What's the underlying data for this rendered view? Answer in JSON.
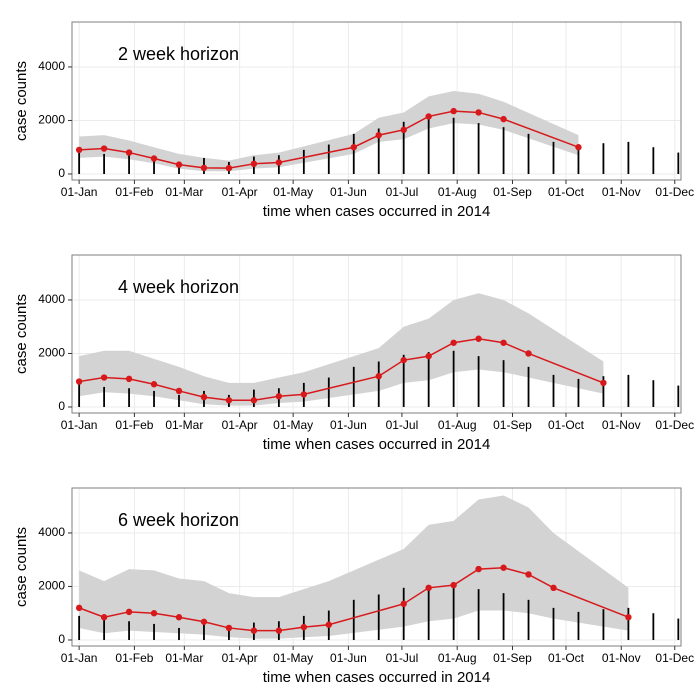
{
  "chart_data": [
    {
      "type": "line",
      "annotation": "2 week horizon",
      "xlabel": "time when cases occurred in 2014",
      "ylabel": "case counts",
      "xlim": [
        -4,
        337.5
      ],
      "ylim": [
        -225,
        5680
      ],
      "grid": true,
      "xticks": [
        {
          "value": 0,
          "label": "01-Jan"
        },
        {
          "value": 31,
          "label": "01-Feb"
        },
        {
          "value": 59,
          "label": "01-Mar"
        },
        {
          "value": 90,
          "label": "01-Apr"
        },
        {
          "value": 120,
          "label": "01-May"
        },
        {
          "value": 151,
          "label": "01-Jun"
        },
        {
          "value": 181,
          "label": "01-Jul"
        },
        {
          "value": 212,
          "label": "01-Aug"
        },
        {
          "value": 243,
          "label": "01-Sep"
        },
        {
          "value": 273,
          "label": "01-Oct"
        },
        {
          "value": 304,
          "label": "01-Nov"
        },
        {
          "value": 334,
          "label": "01-Dec"
        }
      ],
      "yticks": [
        0,
        2000,
        4000
      ],
      "bars": {
        "color": "#000000",
        "x": [
          0,
          14,
          28,
          42,
          56,
          70,
          84,
          98,
          112,
          126,
          140,
          154,
          168,
          182,
          196,
          210,
          224,
          238,
          252,
          266,
          280,
          294,
          308,
          322,
          336
        ],
        "values": [
          900,
          750,
          700,
          600,
          450,
          600,
          450,
          650,
          700,
          900,
          1100,
          1500,
          1700,
          1950,
          2050,
          2100,
          1900,
          1750,
          1500,
          1200,
          1050,
          1150,
          1200,
          1000,
          800
        ]
      },
      "line": {
        "color": "#d7191c",
        "band_color": "#d3d3d3",
        "x": [
          0,
          14,
          28,
          42,
          56,
          70,
          84,
          98,
          112,
          154,
          168,
          182,
          196,
          210,
          224,
          238,
          280
        ],
        "values": [
          900,
          950,
          800,
          580,
          350,
          230,
          220,
          380,
          430,
          1000,
          1450,
          1650,
          2150,
          2350,
          2300,
          2050,
          1000
        ],
        "lower": [
          600,
          650,
          550,
          400,
          200,
          100,
          100,
          200,
          250,
          750,
          1200,
          1300,
          1700,
          1900,
          1850,
          1650,
          700
        ],
        "upper": [
          1400,
          1450,
          1250,
          1000,
          750,
          600,
          500,
          700,
          800,
          1500,
          2100,
          2300,
          2900,
          3100,
          3000,
          2700,
          1450
        ]
      }
    },
    {
      "type": "line",
      "annotation": "4 week horizon",
      "xlabel": "time when cases occurred in 2014",
      "ylabel": "case counts",
      "xlim": [
        -4,
        337.5
      ],
      "ylim": [
        -225,
        5680
      ],
      "grid": true,
      "xticks": [
        {
          "value": 0,
          "label": "01-Jan"
        },
        {
          "value": 31,
          "label": "01-Feb"
        },
        {
          "value": 59,
          "label": "01-Mar"
        },
        {
          "value": 90,
          "label": "01-Apr"
        },
        {
          "value": 120,
          "label": "01-May"
        },
        {
          "value": 151,
          "label": "01-Jun"
        },
        {
          "value": 181,
          "label": "01-Jul"
        },
        {
          "value": 212,
          "label": "01-Aug"
        },
        {
          "value": 243,
          "label": "01-Sep"
        },
        {
          "value": 273,
          "label": "01-Oct"
        },
        {
          "value": 304,
          "label": "01-Nov"
        },
        {
          "value": 334,
          "label": "01-Dec"
        }
      ],
      "yticks": [
        0,
        2000,
        4000
      ],
      "bars": {
        "color": "#000000",
        "x": [
          0,
          14,
          28,
          42,
          56,
          70,
          84,
          98,
          112,
          126,
          140,
          154,
          168,
          182,
          196,
          210,
          224,
          238,
          252,
          266,
          280,
          294,
          308,
          322,
          336
        ],
        "values": [
          900,
          750,
          700,
          600,
          450,
          600,
          450,
          650,
          700,
          900,
          1100,
          1500,
          1700,
          1950,
          2050,
          2100,
          1900,
          1750,
          1500,
          1200,
          1050,
          1150,
          1200,
          1000,
          800
        ]
      },
      "line": {
        "color": "#d7191c",
        "band_color": "#d3d3d3",
        "x": [
          0,
          14,
          28,
          42,
          56,
          70,
          84,
          98,
          112,
          126,
          168,
          182,
          196,
          210,
          224,
          238,
          252,
          294
        ],
        "values": [
          950,
          1100,
          1050,
          850,
          600,
          370,
          250,
          250,
          400,
          470,
          1150,
          1750,
          1900,
          2400,
          2550,
          2400,
          2000,
          900
        ],
        "lower": [
          400,
          550,
          500,
          400,
          250,
          100,
          50,
          50,
          150,
          200,
          600,
          900,
          1000,
          1300,
          1400,
          1300,
          1100,
          500
        ],
        "upper": [
          1900,
          2100,
          2100,
          1800,
          1500,
          1150,
          900,
          900,
          1100,
          1300,
          2200,
          3000,
          3300,
          4000,
          4250,
          4000,
          3500,
          1700
        ]
      }
    },
    {
      "type": "line",
      "annotation": "6 week horizon",
      "xlabel": "time when cases occurred in 2014",
      "ylabel": "case counts",
      "xlim": [
        -4,
        337.5
      ],
      "ylim": [
        -225,
        5680
      ],
      "grid": true,
      "xticks": [
        {
          "value": 0,
          "label": "01-Jan"
        },
        {
          "value": 31,
          "label": "01-Feb"
        },
        {
          "value": 59,
          "label": "01-Mar"
        },
        {
          "value": 90,
          "label": "01-Apr"
        },
        {
          "value": 120,
          "label": "01-May"
        },
        {
          "value": 151,
          "label": "01-Jun"
        },
        {
          "value": 181,
          "label": "01-Jul"
        },
        {
          "value": 212,
          "label": "01-Aug"
        },
        {
          "value": 243,
          "label": "01-Sep"
        },
        {
          "value": 273,
          "label": "01-Oct"
        },
        {
          "value": 304,
          "label": "01-Nov"
        },
        {
          "value": 334,
          "label": "01-Dec"
        }
      ],
      "yticks": [
        0,
        2000,
        4000
      ],
      "bars": {
        "color": "#000000",
        "x": [
          0,
          14,
          28,
          42,
          56,
          70,
          84,
          98,
          112,
          126,
          140,
          154,
          168,
          182,
          196,
          210,
          224,
          238,
          252,
          266,
          280,
          294,
          308,
          322,
          336
        ],
        "values": [
          900,
          750,
          700,
          600,
          450,
          600,
          450,
          650,
          700,
          900,
          1100,
          1500,
          1700,
          1950,
          2050,
          2100,
          1900,
          1750,
          1500,
          1200,
          1050,
          1150,
          1200,
          1000,
          800
        ]
      },
      "line": {
        "color": "#d7191c",
        "band_color": "#d3d3d3",
        "x": [
          0,
          14,
          28,
          42,
          56,
          70,
          84,
          98,
          112,
          126,
          140,
          182,
          196,
          210,
          224,
          238,
          252,
          266,
          308
        ],
        "values": [
          1200,
          850,
          1050,
          1000,
          850,
          680,
          450,
          350,
          350,
          480,
          570,
          1350,
          1950,
          2050,
          2650,
          2700,
          2450,
          1950,
          850
        ],
        "lower": [
          450,
          250,
          350,
          300,
          250,
          200,
          100,
          50,
          50,
          100,
          150,
          500,
          700,
          800,
          1100,
          1100,
          1000,
          800,
          350
        ],
        "upper": [
          2600,
          2200,
          2650,
          2600,
          2300,
          2200,
          1750,
          1600,
          1600,
          1900,
          2200,
          3400,
          4300,
          4450,
          5250,
          5400,
          4950,
          4000,
          1950
        ]
      }
    }
  ]
}
